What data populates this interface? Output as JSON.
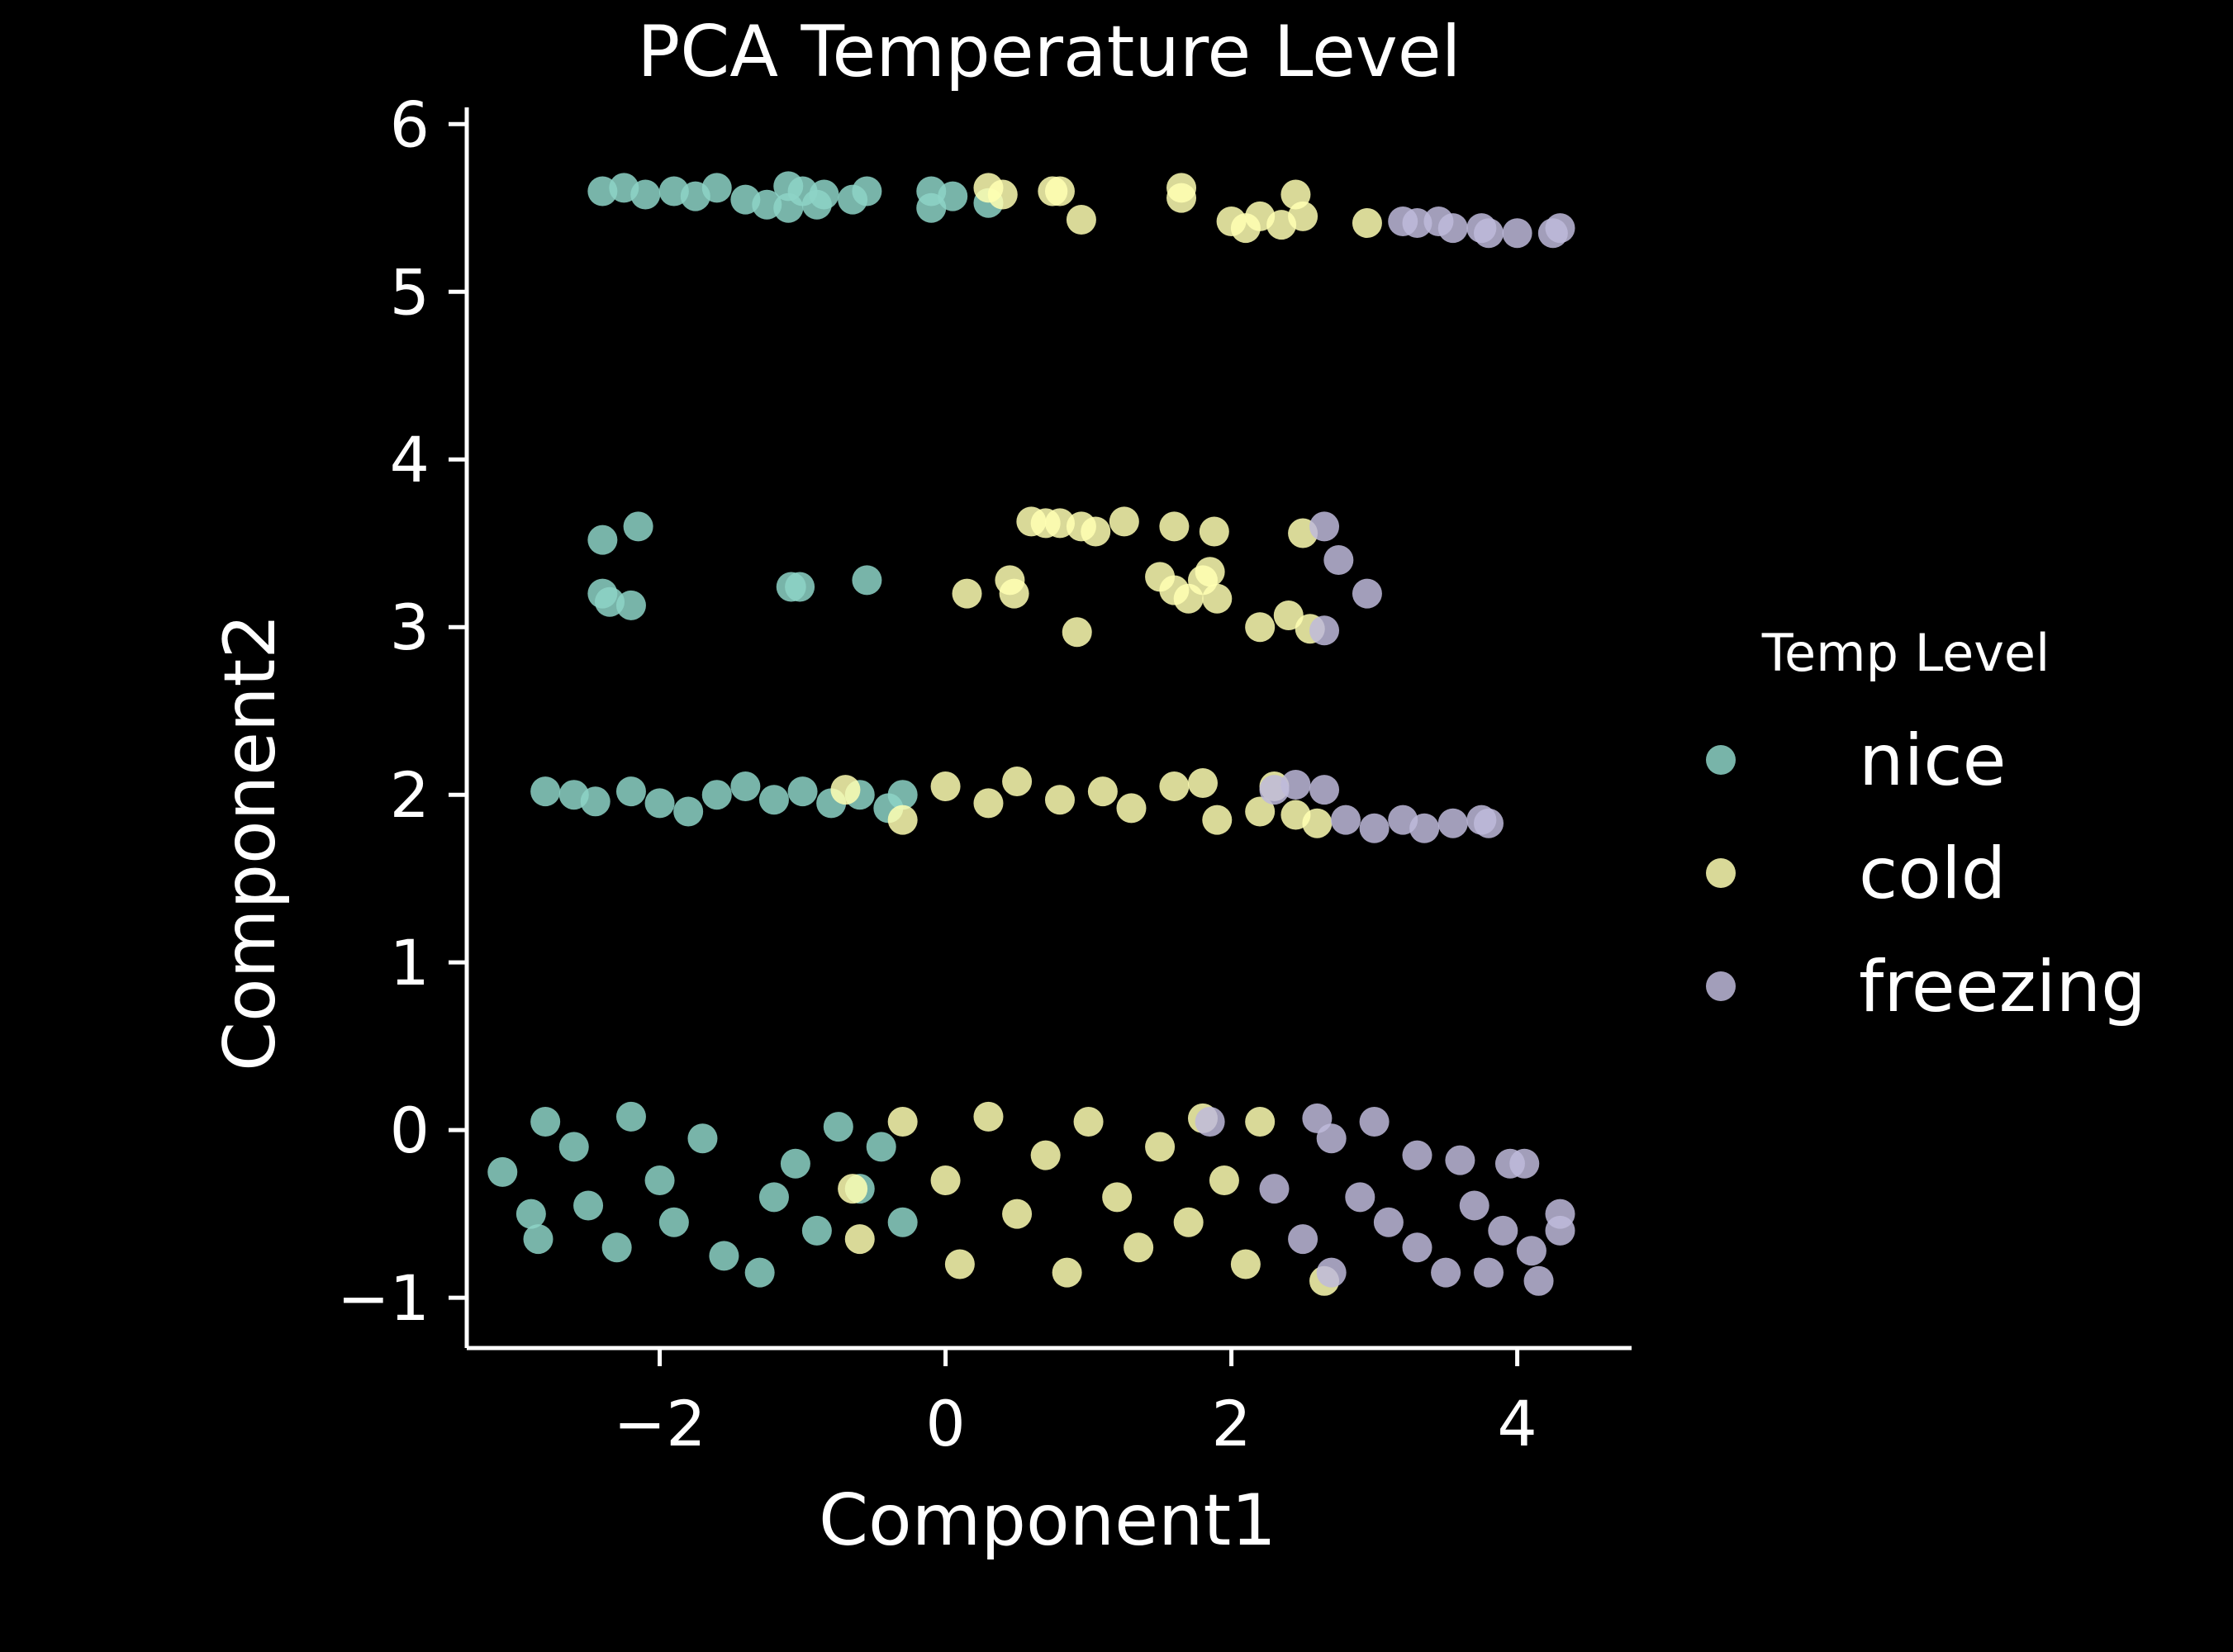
{
  "chart_data": {
    "type": "scatter",
    "title": "PCA Temperature Level",
    "xlabel": "Component1",
    "ylabel": "Component2",
    "xlim": [
      -3.35,
      4.8
    ],
    "ylim": [
      -1.3,
      6.1
    ],
    "xticks": [
      -2,
      0,
      2,
      4
    ],
    "yticks": [
      -1,
      0,
      1,
      2,
      3,
      4,
      5,
      6
    ],
    "xtick_labels": [
      "−2",
      "0",
      "2",
      "4"
    ],
    "ytick_labels": [
      "−1",
      "0",
      "1",
      "2",
      "3",
      "4",
      "5",
      "6"
    ],
    "grid": false,
    "legend": {
      "title": "Temp Level",
      "placement": "right"
    },
    "series": [
      {
        "name": "nice",
        "color": "#8dd3c7",
        "points": [
          [
            -2.4,
            5.6
          ],
          [
            -2.25,
            5.62
          ],
          [
            -2.1,
            5.58
          ],
          [
            -1.9,
            5.6
          ],
          [
            -1.75,
            5.57
          ],
          [
            -1.6,
            5.62
          ],
          [
            -1.4,
            5.55
          ],
          [
            -1.25,
            5.52
          ],
          [
            -1.1,
            5.63
          ],
          [
            -1.0,
            5.6
          ],
          [
            -0.85,
            5.58
          ],
          [
            -0.65,
            5.55
          ],
          [
            -0.55,
            5.6
          ],
          [
            -0.1,
            5.6
          ],
          [
            0.05,
            5.57
          ],
          [
            -0.1,
            5.5
          ],
          [
            0.3,
            5.53
          ],
          [
            -1.1,
            5.5
          ],
          [
            -0.9,
            5.52
          ],
          [
            -2.4,
            3.52
          ],
          [
            -2.15,
            3.6
          ],
          [
            -2.4,
            3.2
          ],
          [
            -2.35,
            3.15
          ],
          [
            -2.2,
            3.13
          ],
          [
            -1.08,
            3.24
          ],
          [
            -1.02,
            3.24
          ],
          [
            -0.55,
            3.28
          ],
          [
            -2.8,
            2.02
          ],
          [
            -2.6,
            2.0
          ],
          [
            -2.45,
            1.96
          ],
          [
            -2.2,
            2.02
          ],
          [
            -2.0,
            1.95
          ],
          [
            -1.8,
            1.9
          ],
          [
            -1.6,
            2.0
          ],
          [
            -1.4,
            2.05
          ],
          [
            -1.2,
            1.97
          ],
          [
            -1.0,
            2.02
          ],
          [
            -0.8,
            1.95
          ],
          [
            -0.6,
            2.0
          ],
          [
            -0.4,
            1.92
          ],
          [
            -0.3,
            2.0
          ],
          [
            -3.1,
            -0.25
          ],
          [
            -2.9,
            -0.5
          ],
          [
            -2.85,
            -0.65
          ],
          [
            -2.8,
            0.05
          ],
          [
            -2.6,
            -0.1
          ],
          [
            -2.5,
            -0.45
          ],
          [
            -2.3,
            -0.7
          ],
          [
            -2.2,
            0.08
          ],
          [
            -2.0,
            -0.3
          ],
          [
            -1.9,
            -0.55
          ],
          [
            -1.7,
            -0.05
          ],
          [
            -1.55,
            -0.75
          ],
          [
            -1.3,
            -0.85
          ],
          [
            -1.2,
            -0.4
          ],
          [
            -1.05,
            -0.2
          ],
          [
            -0.9,
            -0.6
          ],
          [
            -0.75,
            0.02
          ],
          [
            -0.6,
            -0.35
          ],
          [
            -0.45,
            -0.1
          ],
          [
            -0.3,
            -0.55
          ]
        ]
      },
      {
        "name": "cold",
        "color": "#ffffb3",
        "points": [
          [
            0.3,
            5.62
          ],
          [
            0.4,
            5.58
          ],
          [
            0.75,
            5.6
          ],
          [
            0.8,
            5.6
          ],
          [
            0.95,
            5.43
          ],
          [
            1.65,
            5.62
          ],
          [
            1.65,
            5.56
          ],
          [
            2.0,
            5.42
          ],
          [
            2.1,
            5.38
          ],
          [
            2.2,
            5.45
          ],
          [
            2.35,
            5.4
          ],
          [
            2.5,
            5.45
          ],
          [
            2.45,
            5.58
          ],
          [
            2.95,
            5.41
          ],
          [
            0.6,
            3.63
          ],
          [
            0.7,
            3.62
          ],
          [
            0.8,
            3.62
          ],
          [
            0.95,
            3.6
          ],
          [
            1.05,
            3.57
          ],
          [
            1.25,
            3.63
          ],
          [
            1.6,
            3.6
          ],
          [
            1.88,
            3.57
          ],
          [
            2.5,
            3.56
          ],
          [
            0.15,
            3.2
          ],
          [
            0.45,
            3.28
          ],
          [
            0.48,
            3.2
          ],
          [
            1.5,
            3.3
          ],
          [
            1.6,
            3.22
          ],
          [
            1.7,
            3.17
          ],
          [
            1.8,
            3.28
          ],
          [
            1.85,
            3.33
          ],
          [
            1.9,
            3.17
          ],
          [
            0.92,
            2.97
          ],
          [
            2.2,
            3.0
          ],
          [
            2.4,
            3.07
          ],
          [
            2.55,
            2.99
          ],
          [
            -0.7,
            2.03
          ],
          [
            -0.3,
            1.85
          ],
          [
            0.0,
            2.05
          ],
          [
            0.3,
            1.95
          ],
          [
            0.5,
            2.08
          ],
          [
            0.8,
            1.97
          ],
          [
            1.1,
            2.02
          ],
          [
            1.3,
            1.92
          ],
          [
            1.6,
            2.05
          ],
          [
            1.8,
            2.07
          ],
          [
            1.9,
            1.85
          ],
          [
            2.2,
            1.9
          ],
          [
            2.3,
            2.05
          ],
          [
            2.45,
            1.88
          ],
          [
            2.6,
            1.83
          ],
          [
            -0.3,
            0.05
          ],
          [
            0.0,
            -0.3
          ],
          [
            0.1,
            -0.8
          ],
          [
            0.3,
            0.08
          ],
          [
            0.5,
            -0.5
          ],
          [
            0.7,
            -0.15
          ],
          [
            0.85,
            -0.85
          ],
          [
            1.0,
            0.05
          ],
          [
            1.2,
            -0.4
          ],
          [
            1.35,
            -0.7
          ],
          [
            1.5,
            -0.1
          ],
          [
            1.7,
            -0.55
          ],
          [
            1.8,
            0.07
          ],
          [
            1.95,
            -0.3
          ],
          [
            2.1,
            -0.8
          ],
          [
            2.2,
            0.05
          ],
          [
            -0.65,
            -0.35
          ],
          [
            -0.6,
            -0.65
          ],
          [
            2.65,
            -0.9
          ]
        ]
      },
      {
        "name": "freezing",
        "color": "#bebada",
        "points": [
          [
            3.2,
            5.42
          ],
          [
            3.3,
            5.41
          ],
          [
            3.45,
            5.42
          ],
          [
            3.55,
            5.38
          ],
          [
            3.75,
            5.38
          ],
          [
            3.8,
            5.35
          ],
          [
            4.0,
            5.35
          ],
          [
            4.25,
            5.35
          ],
          [
            4.3,
            5.38
          ],
          [
            2.65,
            3.6
          ],
          [
            2.75,
            3.4
          ],
          [
            2.95,
            3.2
          ],
          [
            2.65,
            2.98
          ],
          [
            2.3,
            2.03
          ],
          [
            2.45,
            2.06
          ],
          [
            2.65,
            2.03
          ],
          [
            2.8,
            1.85
          ],
          [
            3.0,
            1.8
          ],
          [
            3.2,
            1.85
          ],
          [
            3.35,
            1.8
          ],
          [
            3.55,
            1.83
          ],
          [
            3.75,
            1.85
          ],
          [
            3.8,
            1.83
          ],
          [
            1.85,
            0.05
          ],
          [
            2.6,
            0.07
          ],
          [
            2.7,
            -0.05
          ],
          [
            3.0,
            0.05
          ],
          [
            3.3,
            -0.15
          ],
          [
            3.6,
            -0.18
          ],
          [
            3.95,
            -0.2
          ],
          [
            4.05,
            -0.2
          ],
          [
            2.3,
            -0.35
          ],
          [
            2.5,
            -0.65
          ],
          [
            2.7,
            -0.85
          ],
          [
            2.9,
            -0.4
          ],
          [
            3.1,
            -0.55
          ],
          [
            3.3,
            -0.7
          ],
          [
            3.5,
            -0.85
          ],
          [
            3.7,
            -0.45
          ],
          [
            3.9,
            -0.6
          ],
          [
            4.1,
            -0.72
          ],
          [
            4.15,
            -0.9
          ],
          [
            4.3,
            -0.5
          ],
          [
            4.3,
            -0.6
          ],
          [
            3.8,
            -0.85
          ]
        ]
      }
    ]
  }
}
